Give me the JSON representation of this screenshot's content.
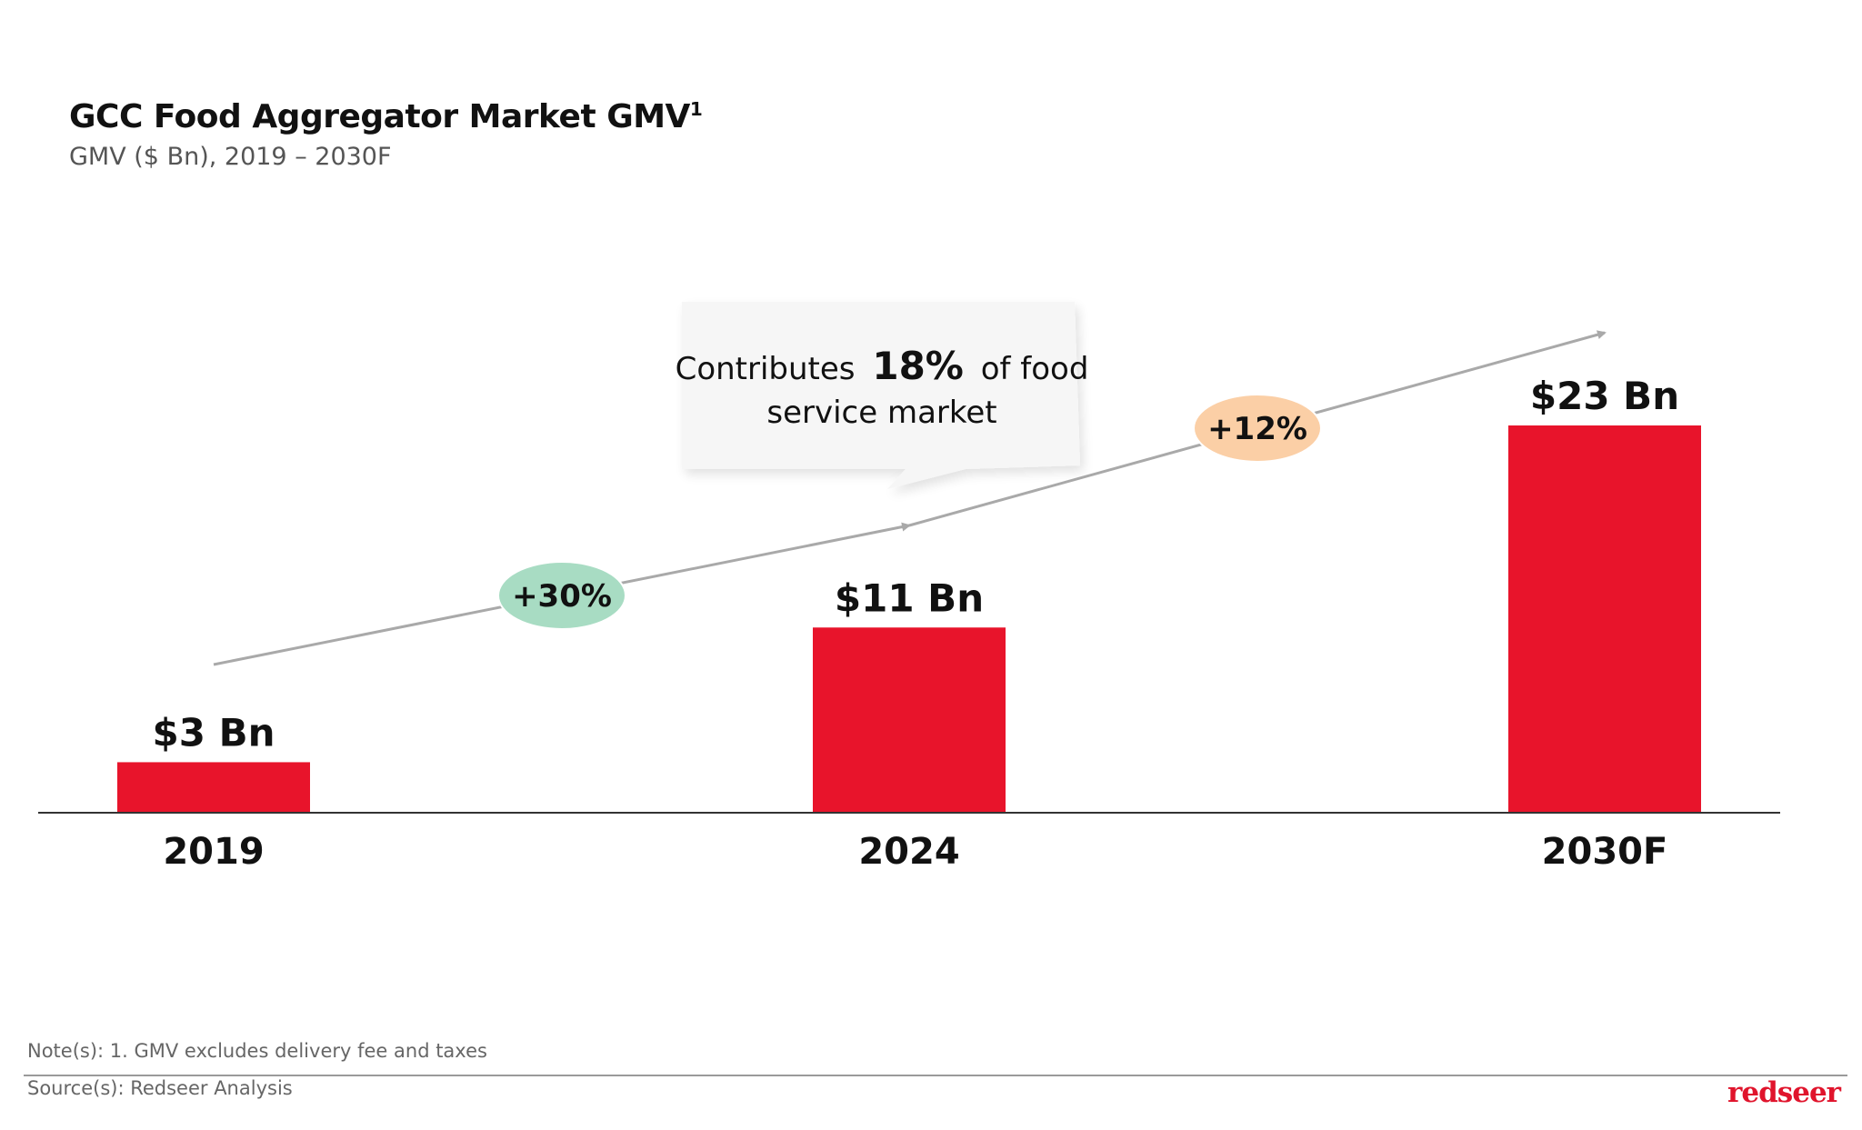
{
  "header": {
    "title": "GCC Food Aggregator Market GMV",
    "title_superscript": "1",
    "subtitle": "GMV ($ Bn), 2019 – 2030F"
  },
  "chart_data": {
    "type": "bar",
    "title": "GCC Food Aggregator Market GMV",
    "subtitle": "GMV ($ Bn), 2019 – 2030F",
    "categories": [
      "2019",
      "2024",
      "2030F"
    ],
    "values": [
      3,
      11,
      23
    ],
    "data_labels": [
      "$3 Bn",
      "$11 Bn",
      "$23 Bn"
    ],
    "ylabel": "GMV ($ Bn)",
    "ylim": [
      0,
      23
    ],
    "bar_color": "#e8142b",
    "growth_annotations": [
      {
        "label": "+30%",
        "from": "2019",
        "to": "2024",
        "color": "#a8dcc3"
      },
      {
        "label": "+12%",
        "from": "2024",
        "to": "2030F",
        "color": "#fbcfa6"
      }
    ],
    "callout": {
      "prefix": "Contributes",
      "highlight": "18%",
      "suffix": "of food",
      "line2": "service market"
    }
  },
  "footer": {
    "note": "Note(s): 1. GMV excludes delivery fee and taxes",
    "source": "Source(s): Redseer Analysis",
    "logo_text": "redseer"
  }
}
